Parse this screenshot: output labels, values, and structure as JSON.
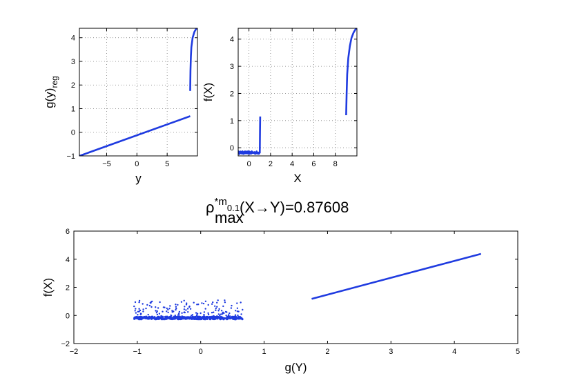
{
  "chart_data": [
    {
      "type": "line",
      "xlabel": "y",
      "ylabel_base": "g(y)",
      "ylabel_sub": "reg",
      "xlim": [
        -9.5,
        10
      ],
      "ylim": [
        -1,
        4.4
      ],
      "xticks": [
        -5,
        0,
        5
      ],
      "yticks": [
        -1,
        0,
        1,
        2,
        3,
        4
      ],
      "grid": true,
      "series": [
        {
          "x": [
            -9.5,
            8.8
          ],
          "y": [
            -1,
            0.68
          ]
        },
        {
          "x": [
            8.8,
            8.85,
            8.92,
            9.0,
            9.2,
            9.5,
            9.8,
            10.0
          ],
          "y": [
            1.75,
            2.6,
            3.2,
            3.6,
            4.0,
            4.25,
            4.38,
            4.42
          ]
        }
      ]
    },
    {
      "type": "line",
      "xlabel": "X",
      "ylabel": "f(X)",
      "xlim": [
        -1,
        10
      ],
      "ylim": [
        -0.3,
        4.4
      ],
      "xticks": [
        0,
        2,
        4,
        6,
        8
      ],
      "yticks": [
        0,
        1,
        2,
        3,
        4
      ],
      "grid": true,
      "series": [
        {
          "x": [
            -1,
            1.0
          ],
          "y": [
            -0.18,
            -0.18
          ],
          "noise": 0.05
        },
        {
          "x": [
            1.0,
            1.02,
            1.04
          ],
          "y": [
            -0.2,
            0.6,
            1.15
          ]
        },
        {
          "x": [
            9.0,
            9.05,
            9.1,
            9.2,
            9.35,
            9.5,
            9.7,
            9.9,
            10.0
          ],
          "y": [
            1.2,
            2.0,
            2.7,
            3.3,
            3.75,
            4.05,
            4.25,
            4.38,
            4.42
          ]
        }
      ]
    },
    {
      "type": "scatter",
      "title_base": "ρ",
      "title_sup": "*m",
      "title_sub": "max",
      "title_sub2": "0.1",
      "title_rest": "(X→Y)=0.87608",
      "xlabel": "g(Y)",
      "ylabel": "f(X)",
      "xlim": [
        -2,
        5
      ],
      "ylim": [
        -2,
        6
      ],
      "xticks": [
        -2,
        -1,
        0,
        1,
        2,
        3,
        4,
        5
      ],
      "yticks": [
        -2,
        0,
        2,
        4,
        6
      ],
      "grid": false,
      "cluster": {
        "x_range": [
          -1.05,
          0.67
        ],
        "y_base": -0.18,
        "outlier_y_range": [
          -0.1,
          1.1
        ]
      },
      "line": {
        "x": [
          1.75,
          4.42
        ],
        "y": [
          1.18,
          4.38
        ]
      }
    }
  ]
}
